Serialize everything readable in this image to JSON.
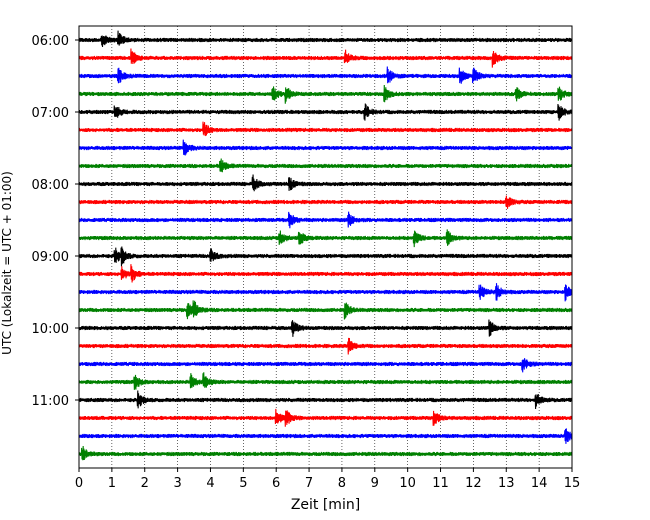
{
  "chart_data": {
    "type": "line",
    "xlabel": "Zeit  [min]",
    "ylabel": "UTC (Lokalzeit = UTC + 01:00)",
    "xlim": [
      0,
      15
    ],
    "x_ticks": [
      "0",
      "1",
      "2",
      "3",
      "4",
      "5",
      "6",
      "7",
      "8",
      "9",
      "10",
      "11",
      "12",
      "13",
      "14",
      "15"
    ],
    "y_ticks": [
      {
        "label": "06:00",
        "row": 0
      },
      {
        "label": "07:00",
        "row": 4
      },
      {
        "label": "08:00",
        "row": 8
      },
      {
        "label": "09:00",
        "row": 12
      },
      {
        "label": "10:00",
        "row": 16
      },
      {
        "label": "11:00",
        "row": 20
      }
    ],
    "grid_x": true,
    "row_colors": [
      "#000000",
      "#ff0000",
      "#0000ff",
      "#008000"
    ],
    "rows": [
      {
        "start": "06:00",
        "events_min": [
          0.7,
          1.2
        ]
      },
      {
        "start": "06:15",
        "events_min": [
          1.6,
          8.1,
          12.6
        ]
      },
      {
        "start": "06:30",
        "events_min": [
          1.2,
          9.4,
          11.6,
          12.0
        ]
      },
      {
        "start": "06:45",
        "events_min": [
          5.9,
          6.3,
          9.3,
          13.3,
          14.6
        ]
      },
      {
        "start": "07:00",
        "events_min": [
          1.1,
          8.7,
          14.6
        ]
      },
      {
        "start": "07:15",
        "events_min": [
          3.8
        ]
      },
      {
        "start": "07:30",
        "events_min": [
          3.2
        ]
      },
      {
        "start": "07:45",
        "events_min": [
          4.3
        ]
      },
      {
        "start": "08:00",
        "events_min": [
          5.3,
          6.4
        ]
      },
      {
        "start": "08:15",
        "events_min": [
          13.0
        ]
      },
      {
        "start": "08:30",
        "events_min": [
          6.4,
          8.2
        ]
      },
      {
        "start": "08:45",
        "events_min": [
          6.1,
          6.7,
          10.2,
          11.2
        ]
      },
      {
        "start": "09:00",
        "events_min": [
          1.1,
          1.3,
          4.0
        ]
      },
      {
        "start": "09:15",
        "events_min": [
          1.3,
          1.6
        ]
      },
      {
        "start": "09:30",
        "events_min": [
          12.2,
          12.7,
          14.8
        ]
      },
      {
        "start": "09:45",
        "events_min": [
          3.3,
          3.5,
          8.1
        ]
      },
      {
        "start": "10:00",
        "events_min": [
          6.5,
          12.5
        ]
      },
      {
        "start": "10:15",
        "events_min": [
          8.2
        ]
      },
      {
        "start": "10:30",
        "events_min": [
          13.5
        ]
      },
      {
        "start": "10:45",
        "events_min": [
          1.7,
          3.4,
          3.8
        ]
      },
      {
        "start": "11:00",
        "events_min": [
          1.8,
          13.9
        ]
      },
      {
        "start": "11:15",
        "events_min": [
          6.0,
          6.3,
          10.8
        ]
      },
      {
        "start": "11:30",
        "events_min": [
          14.8
        ]
      },
      {
        "start": "11:45",
        "events_min": [
          0.1
        ]
      }
    ]
  }
}
